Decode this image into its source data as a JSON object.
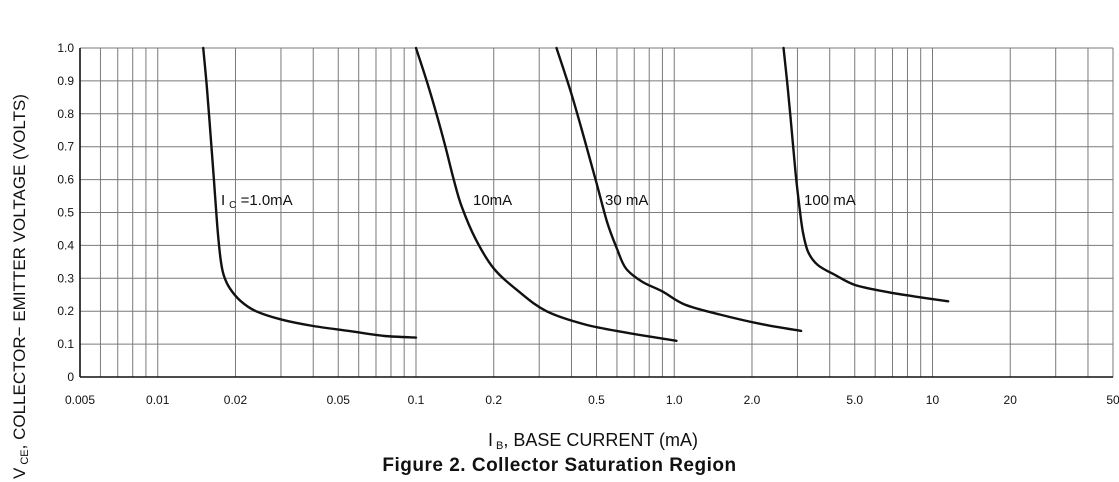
{
  "chart_data": {
    "type": "line",
    "x_scale": "log",
    "xlim": [
      0.005,
      50
    ],
    "ylim": [
      0,
      1.0
    ],
    "grid": true,
    "xlabel_main": "I",
    "xlabel_sub": "B",
    "xlabel_rest": ", BASE CURRENT (mA)",
    "ylabel_main": "V",
    "ylabel_sub": "CE",
    "ylabel_rest": ", COLLECTOR− EMITTER VOLTAGE (VOLTS)",
    "x_tick_labels": [
      "0.005",
      "0.01",
      "0.02",
      "0.05",
      "0.1",
      "0.2",
      "0.5",
      "1.0",
      "2.0",
      "5.0",
      "10",
      "20",
      "50"
    ],
    "y_tick_labels": [
      "0",
      "0.1",
      "0.2",
      "0.3",
      "0.4",
      "0.5",
      "0.6",
      "0.7",
      "0.8",
      "0.9",
      "1.0"
    ],
    "series": [
      {
        "name": "I C =1.0mA",
        "label_main": "I",
        "label_sub": "C",
        "label_rest": " =1.0mA",
        "x": [
          0.015,
          0.0155,
          0.016,
          0.0165,
          0.017,
          0.0175,
          0.018,
          0.019,
          0.021,
          0.024,
          0.03,
          0.04,
          0.055,
          0.075,
          0.1
        ],
        "y": [
          1.0,
          0.88,
          0.74,
          0.6,
          0.46,
          0.36,
          0.31,
          0.27,
          0.23,
          0.2,
          0.175,
          0.155,
          0.14,
          0.125,
          0.12
        ]
      },
      {
        "name": "10mA",
        "label_main": "10mA",
        "x": [
          0.1,
          0.11,
          0.12,
          0.13,
          0.14,
          0.15,
          0.17,
          0.2,
          0.25,
          0.32,
          0.45,
          0.65,
          0.85,
          1.02
        ],
        "y": [
          1.0,
          0.9,
          0.8,
          0.7,
          0.6,
          0.52,
          0.42,
          0.33,
          0.26,
          0.2,
          0.16,
          0.135,
          0.12,
          0.11
        ]
      },
      {
        "name": "30 mA",
        "label_main": "30 mA",
        "x": [
          0.35,
          0.4,
          0.45,
          0.5,
          0.55,
          0.6,
          0.65,
          0.75,
          0.9,
          1.1,
          1.5,
          2.2,
          3.1
        ],
        "y": [
          1.0,
          0.86,
          0.72,
          0.59,
          0.47,
          0.39,
          0.33,
          0.29,
          0.26,
          0.22,
          0.19,
          0.16,
          0.14
        ]
      },
      {
        "name": "100 mA",
        "label_main": "100 mA",
        "x": [
          2.65,
          2.75,
          2.85,
          2.95,
          3.05,
          3.15,
          3.3,
          3.6,
          4.2,
          5.0,
          6.5,
          8.5,
          11.5
        ],
        "y": [
          1.0,
          0.88,
          0.75,
          0.62,
          0.52,
          0.44,
          0.38,
          0.34,
          0.31,
          0.28,
          0.26,
          0.245,
          0.23
        ]
      }
    ]
  },
  "caption": "Figure 2. Collector Saturation Region"
}
